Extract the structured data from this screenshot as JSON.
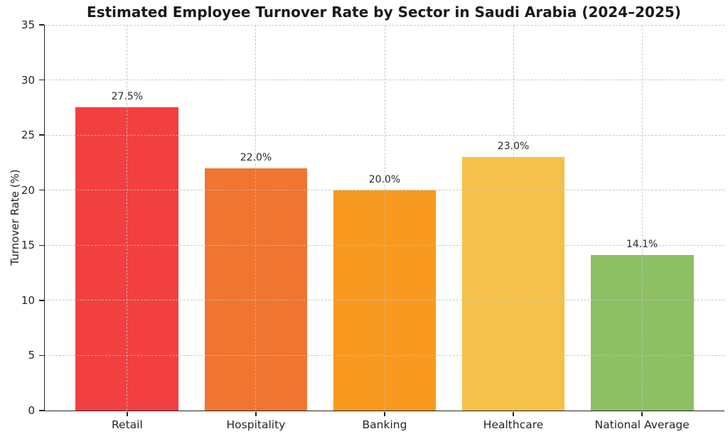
{
  "chart_data": {
    "type": "bar",
    "title": "Estimated Employee Turnover Rate by Sector in Saudi Arabia (2024–2025)",
    "xlabel": "",
    "ylabel": "Turnover Rate (%)",
    "categories": [
      "Retail",
      "Hospitality",
      "Banking",
      "Healthcare",
      "National Average"
    ],
    "values": [
      27.5,
      22.0,
      20.0,
      23.0,
      14.1
    ],
    "value_labels": [
      "27.5%",
      "22.0%",
      "20.0%",
      "23.0%",
      "14.1%"
    ],
    "bar_colors": [
      "#F23F3F",
      "#EF7530",
      "#F89A20",
      "#F6C14A",
      "#8CC063"
    ],
    "ylim": [
      0,
      35
    ],
    "yticks": [
      0,
      5,
      10,
      15,
      20,
      25,
      30,
      35
    ],
    "ytick_labels": [
      "0",
      "5",
      "10",
      "15",
      "20",
      "25",
      "30",
      "35"
    ],
    "grid": {
      "axis": "both",
      "style": "dashed",
      "color": "#bebebe"
    },
    "legend": "none"
  }
}
